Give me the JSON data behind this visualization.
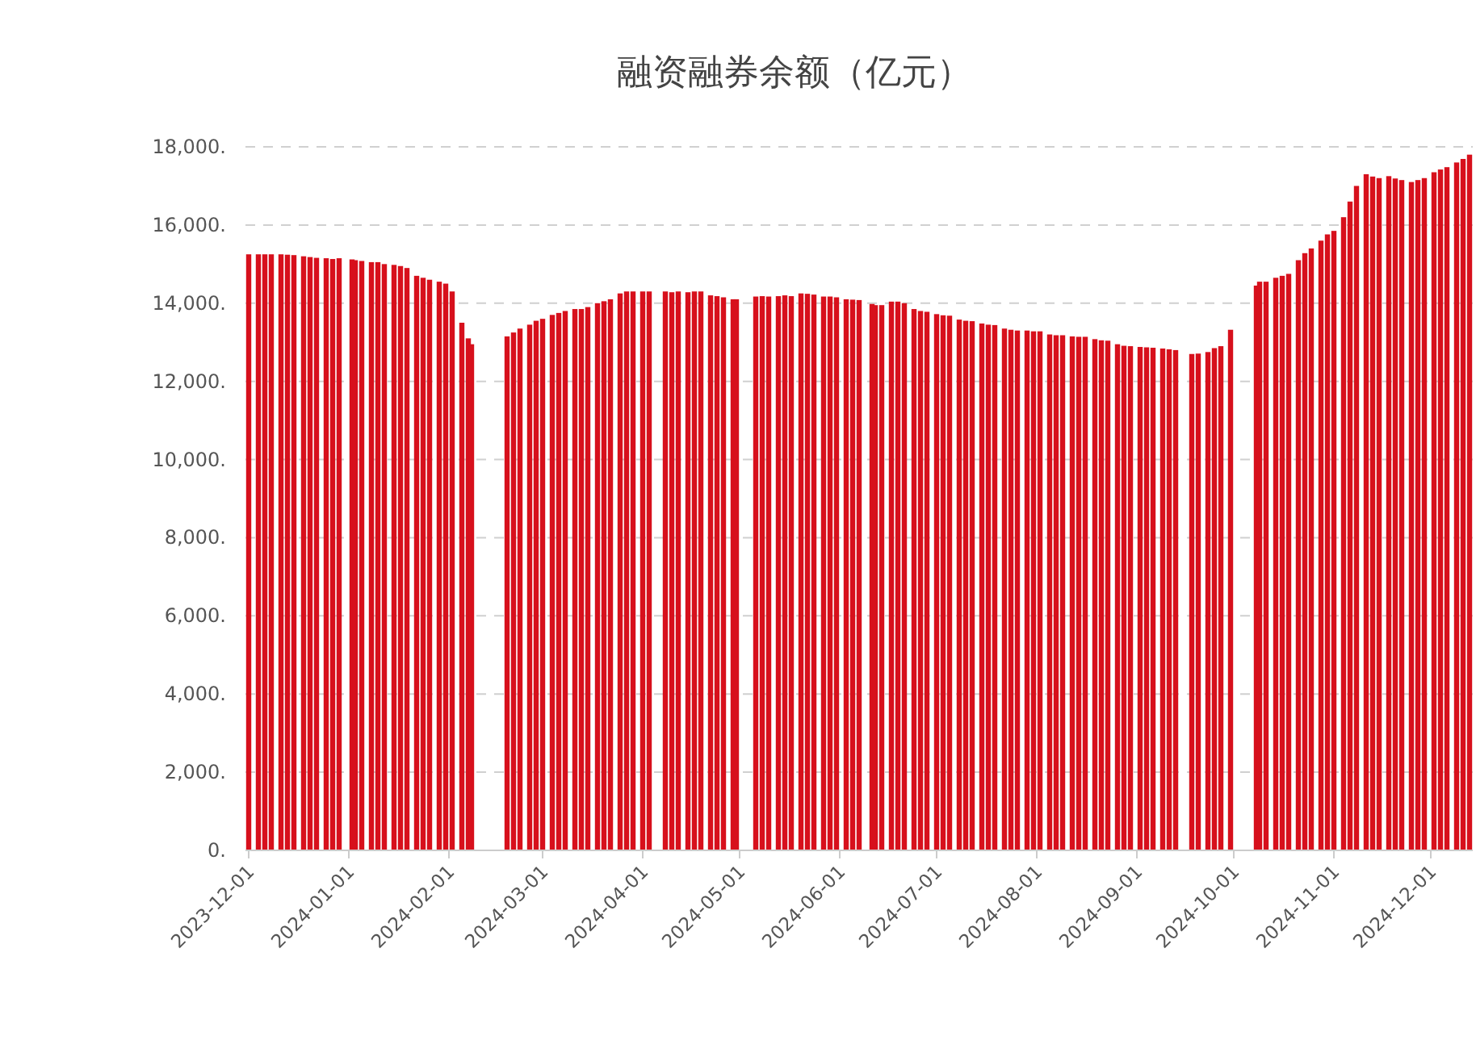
{
  "chart_data": {
    "type": "bar",
    "title": "融资融券余额（亿元）",
    "color": "#d7101c",
    "grid": "y",
    "xlim": [
      "2023-11-30",
      "2024-12-14"
    ],
    "xticks": [
      "2023-12-01",
      "2024-01-01",
      "2024-02-01",
      "2024-03-01",
      "2024-04-01",
      "2024-05-01",
      "2024-06-01",
      "2024-07-01",
      "2024-08-01",
      "2024-09-01",
      "2024-10-01",
      "2024-11-01",
      "2024-12-01"
    ],
    "ylim": [
      0,
      18000
    ],
    "yticks": [
      {
        "value": 0,
        "label": "0."
      },
      {
        "value": 2000,
        "label": "2,000."
      },
      {
        "value": 4000,
        "label": "4,000."
      },
      {
        "value": 6000,
        "label": "6,000."
      },
      {
        "value": 8000,
        "label": "8,000."
      },
      {
        "value": 10000,
        "label": "10,000."
      },
      {
        "value": 12000,
        "label": "12,000."
      },
      {
        "value": 14000,
        "label": "14,000."
      },
      {
        "value": 16000,
        "label": "16,000."
      },
      {
        "value": 18000,
        "label": "18,000."
      }
    ],
    "x": [
      "2023-12-01",
      "2023-12-04",
      "2023-12-06",
      "2023-12-08",
      "2023-12-11",
      "2023-12-13",
      "2023-12-15",
      "2023-12-18",
      "2023-12-20",
      "2023-12-22",
      "2023-12-25",
      "2023-12-27",
      "2023-12-29",
      "2024-01-02",
      "2024-01-03",
      "2024-01-05",
      "2024-01-08",
      "2024-01-10",
      "2024-01-12",
      "2024-01-15",
      "2024-01-17",
      "2024-01-19",
      "2024-01-22",
      "2024-01-24",
      "2024-01-26",
      "2024-01-29",
      "2024-01-31",
      "2024-02-02",
      "2024-02-05",
      "2024-02-07",
      "2024-02-08",
      "2024-02-19",
      "2024-02-21",
      "2024-02-23",
      "2024-02-26",
      "2024-02-28",
      "2024-03-01",
      "2024-03-04",
      "2024-03-06",
      "2024-03-08",
      "2024-03-11",
      "2024-03-13",
      "2024-03-15",
      "2024-03-18",
      "2024-03-20",
      "2024-03-22",
      "2024-03-25",
      "2024-03-27",
      "2024-03-29",
      "2024-04-01",
      "2024-04-03",
      "2024-04-08",
      "2024-04-10",
      "2024-04-12",
      "2024-04-15",
      "2024-04-17",
      "2024-04-19",
      "2024-04-22",
      "2024-04-24",
      "2024-04-26",
      "2024-04-29",
      "2024-04-30",
      "2024-05-06",
      "2024-05-08",
      "2024-05-10",
      "2024-05-13",
      "2024-05-15",
      "2024-05-17",
      "2024-05-20",
      "2024-05-22",
      "2024-05-24",
      "2024-05-27",
      "2024-05-29",
      "2024-05-31",
      "2024-06-03",
      "2024-06-05",
      "2024-06-07",
      "2024-06-11",
      "2024-06-12",
      "2024-06-14",
      "2024-06-17",
      "2024-06-19",
      "2024-06-21",
      "2024-06-24",
      "2024-06-26",
      "2024-06-28",
      "2024-07-01",
      "2024-07-03",
      "2024-07-05",
      "2024-07-08",
      "2024-07-10",
      "2024-07-12",
      "2024-07-15",
      "2024-07-17",
      "2024-07-19",
      "2024-07-22",
      "2024-07-24",
      "2024-07-26",
      "2024-07-29",
      "2024-07-31",
      "2024-08-02",
      "2024-08-05",
      "2024-08-07",
      "2024-08-09",
      "2024-08-12",
      "2024-08-14",
      "2024-08-16",
      "2024-08-19",
      "2024-08-21",
      "2024-08-23",
      "2024-08-26",
      "2024-08-28",
      "2024-08-30",
      "2024-09-02",
      "2024-09-04",
      "2024-09-06",
      "2024-09-09",
      "2024-09-11",
      "2024-09-13",
      "2024-09-18",
      "2024-09-20",
      "2024-09-23",
      "2024-09-25",
      "2024-09-27",
      "2024-09-30",
      "2024-10-08",
      "2024-10-09",
      "2024-10-11",
      "2024-10-14",
      "2024-10-16",
      "2024-10-18",
      "2024-10-21",
      "2024-10-23",
      "2024-10-25",
      "2024-10-28",
      "2024-10-30",
      "2024-11-01",
      "2024-11-04",
      "2024-11-06",
      "2024-11-08",
      "2024-11-11",
      "2024-11-13",
      "2024-11-15",
      "2024-11-18",
      "2024-11-20",
      "2024-11-22",
      "2024-11-25",
      "2024-11-27",
      "2024-11-29",
      "2024-12-02",
      "2024-12-04",
      "2024-12-06",
      "2024-12-09",
      "2024-12-11",
      "2024-12-13"
    ],
    "values": [
      15250,
      15250,
      15250,
      15250,
      15250,
      15240,
      15230,
      15200,
      15180,
      15160,
      15150,
      15130,
      15150,
      15120,
      15100,
      15080,
      15050,
      15050,
      15000,
      14980,
      14950,
      14900,
      14700,
      14650,
      14600,
      14550,
      14500,
      14300,
      13500,
      13100,
      12950,
      13150,
      13250,
      13350,
      13450,
      13550,
      13600,
      13700,
      13750,
      13800,
      13850,
      13850,
      13900,
      14000,
      14050,
      14100,
      14250,
      14300,
      14300,
      14300,
      14300,
      14300,
      14280,
      14300,
      14280,
      14300,
      14300,
      14200,
      14180,
      14150,
      14100,
      14100,
      14170,
      14180,
      14170,
      14180,
      14200,
      14180,
      14250,
      14240,
      14220,
      14170,
      14170,
      14150,
      14100,
      14090,
      14080,
      13980,
      13950,
      13950,
      14040,
      14040,
      14000,
      13850,
      13800,
      13780,
      13720,
      13690,
      13680,
      13580,
      13550,
      13540,
      13480,
      13450,
      13440,
      13350,
      13320,
      13300,
      13300,
      13280,
      13280,
      13200,
      13180,
      13180,
      13150,
      13140,
      13140,
      13080,
      13050,
      13040,
      12950,
      12910,
      12900,
      12880,
      12870,
      12860,
      12840,
      12820,
      12800,
      12700,
      12710,
      12750,
      12850,
      12900,
      13320,
      14450,
      14550,
      14550,
      14650,
      14700,
      14750,
      15100,
      15280,
      15400,
      15600,
      15760,
      15850,
      16200,
      16600,
      17000,
      17300,
      17240,
      17200,
      17250,
      17190,
      17150,
      17100,
      17150,
      17200,
      17350,
      17420,
      17480,
      17600,
      17690,
      17800
    ]
  }
}
